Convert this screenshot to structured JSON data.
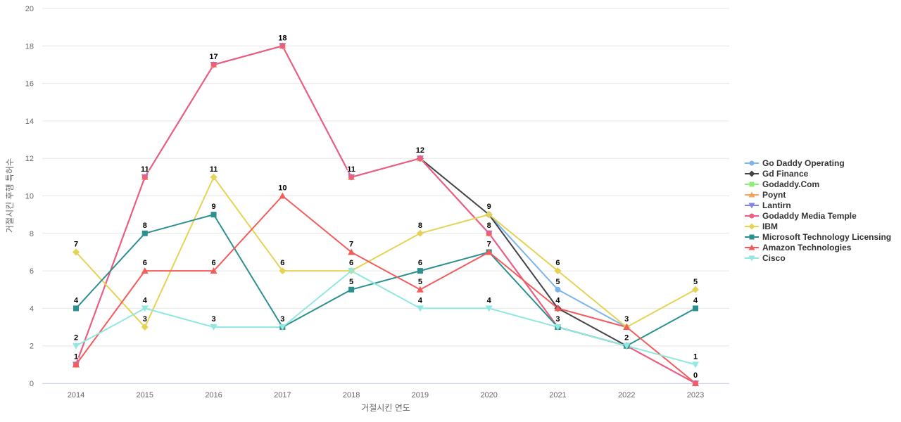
{
  "chart_data": {
    "type": "line",
    "title": "",
    "xlabel": "거절시킨 연도",
    "ylabel": "거절시킨 후행 특허수",
    "categories": [
      "2014",
      "2015",
      "2016",
      "2017",
      "2018",
      "2019",
      "2020",
      "2021",
      "2022",
      "2023"
    ],
    "ylim": [
      0,
      20
    ],
    "y_tick_step": 2,
    "grid": true,
    "legend_position": "right",
    "series": [
      {
        "name": "Go Daddy Operating",
        "color": "#7cb5ec",
        "symbol": "circle",
        "values": [
          null,
          null,
          null,
          null,
          null,
          null,
          9,
          5,
          3,
          null
        ]
      },
      {
        "name": "Gd Finance",
        "color": "#434348",
        "symbol": "diamond",
        "values": [
          null,
          null,
          null,
          null,
          null,
          12,
          9,
          4,
          2,
          null
        ]
      },
      {
        "name": "Godaddy.Com",
        "color": "#90ed7d",
        "symbol": "square",
        "values": [
          1,
          11,
          17,
          18,
          11,
          12,
          8,
          3,
          2,
          0
        ]
      },
      {
        "name": "Poynt",
        "color": "#f7a35c",
        "symbol": "triangle",
        "values": [
          1,
          11,
          17,
          18,
          11,
          12,
          8,
          3,
          2,
          0
        ]
      },
      {
        "name": "Lantirn",
        "color": "#8085e9",
        "symbol": "triangle-down",
        "values": [
          1,
          11,
          17,
          18,
          11,
          12,
          8,
          3,
          2,
          0
        ]
      },
      {
        "name": "Godaddy Media Temple",
        "color": "#f15c80",
        "symbol": "circle",
        "values": [
          1,
          11,
          17,
          18,
          11,
          12,
          8,
          3,
          2,
          0
        ]
      },
      {
        "name": "IBM",
        "color": "#e4d354",
        "symbol": "diamond",
        "values": [
          7,
          3,
          11,
          6,
          6,
          8,
          9,
          6,
          3,
          5
        ]
      },
      {
        "name": "Microsoft Technology Licensing",
        "color": "#2b908f",
        "symbol": "square",
        "values": [
          4,
          8,
          9,
          3,
          5,
          6,
          7,
          3,
          2,
          4
        ]
      },
      {
        "name": "Amazon Technologies",
        "color": "#f45b5b",
        "symbol": "triangle",
        "values": [
          1,
          6,
          6,
          10,
          7,
          5,
          7,
          4,
          3,
          0
        ]
      },
      {
        "name": "Cisco",
        "color": "#91e8e1",
        "symbol": "triangle-down",
        "values": [
          2,
          4,
          3,
          3,
          6,
          4,
          4,
          3,
          2,
          1
        ]
      }
    ]
  },
  "colors": {
    "background": "#ffffff",
    "grid_line": "#e6e6e6",
    "axis_line": "#ccd6eb",
    "tick_label": "#666666",
    "axis_title": "#666666",
    "data_label": "#000000",
    "legend_label": "#333333"
  }
}
